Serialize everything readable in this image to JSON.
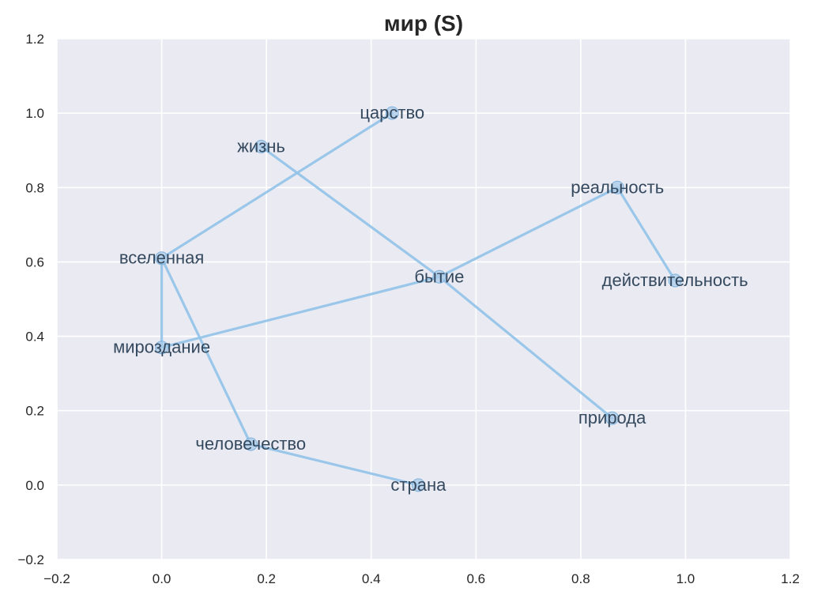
{
  "chart_data": {
    "type": "scatter",
    "title": "мир (S)",
    "xlabel": "",
    "ylabel": "",
    "xlim": [
      -0.2,
      1.2
    ],
    "ylim": [
      -0.2,
      1.2
    ],
    "xticks": [
      -0.2,
      0.0,
      0.2,
      0.4,
      0.6,
      0.8,
      1.0,
      1.2
    ],
    "yticks": [
      -0.2,
      0.0,
      0.2,
      0.4,
      0.6,
      0.8,
      1.0,
      1.2
    ],
    "xtick_labels": [
      "−0.2",
      "0.0",
      "0.2",
      "0.4",
      "0.6",
      "0.8",
      "1.0",
      "1.2"
    ],
    "ytick_labels": [
      "−0.2",
      "0.0",
      "0.2",
      "0.4",
      "0.6",
      "0.8",
      "1.0",
      "1.2"
    ],
    "grid": true,
    "colors": {
      "background": "#eaeaf2",
      "grid": "#ffffff",
      "line": "#91c3e8",
      "marker": "#a9cbea",
      "marker_edge": "#7fb2dc",
      "label": "#34495e",
      "text": "#262626"
    },
    "points": [
      {
        "label": "царство",
        "x": 0.44,
        "y": 1.0
      },
      {
        "label": "жизнь",
        "x": 0.19,
        "y": 0.91
      },
      {
        "label": "реальность",
        "x": 0.87,
        "y": 0.8
      },
      {
        "label": "вселенная",
        "x": 0.0,
        "y": 0.61
      },
      {
        "label": "бытие",
        "x": 0.53,
        "y": 0.56
      },
      {
        "label": "действительность",
        "x": 0.98,
        "y": 0.55
      },
      {
        "label": "мироздание",
        "x": 0.0,
        "y": 0.37
      },
      {
        "label": "природа",
        "x": 0.86,
        "y": 0.18
      },
      {
        "label": "человечество",
        "x": 0.17,
        "y": 0.11
      },
      {
        "label": "страна",
        "x": 0.49,
        "y": 0.0
      }
    ],
    "edges": [
      [
        "царство",
        "вселенная"
      ],
      [
        "вселенная",
        "мироздание"
      ],
      [
        "вселенная",
        "человечество"
      ],
      [
        "человечество",
        "страна"
      ],
      [
        "мироздание",
        "бытие"
      ],
      [
        "бытие",
        "реальность"
      ],
      [
        "реальность",
        "действительность"
      ],
      [
        "жизнь",
        "бытие"
      ],
      [
        "бытие",
        "природа"
      ]
    ]
  }
}
